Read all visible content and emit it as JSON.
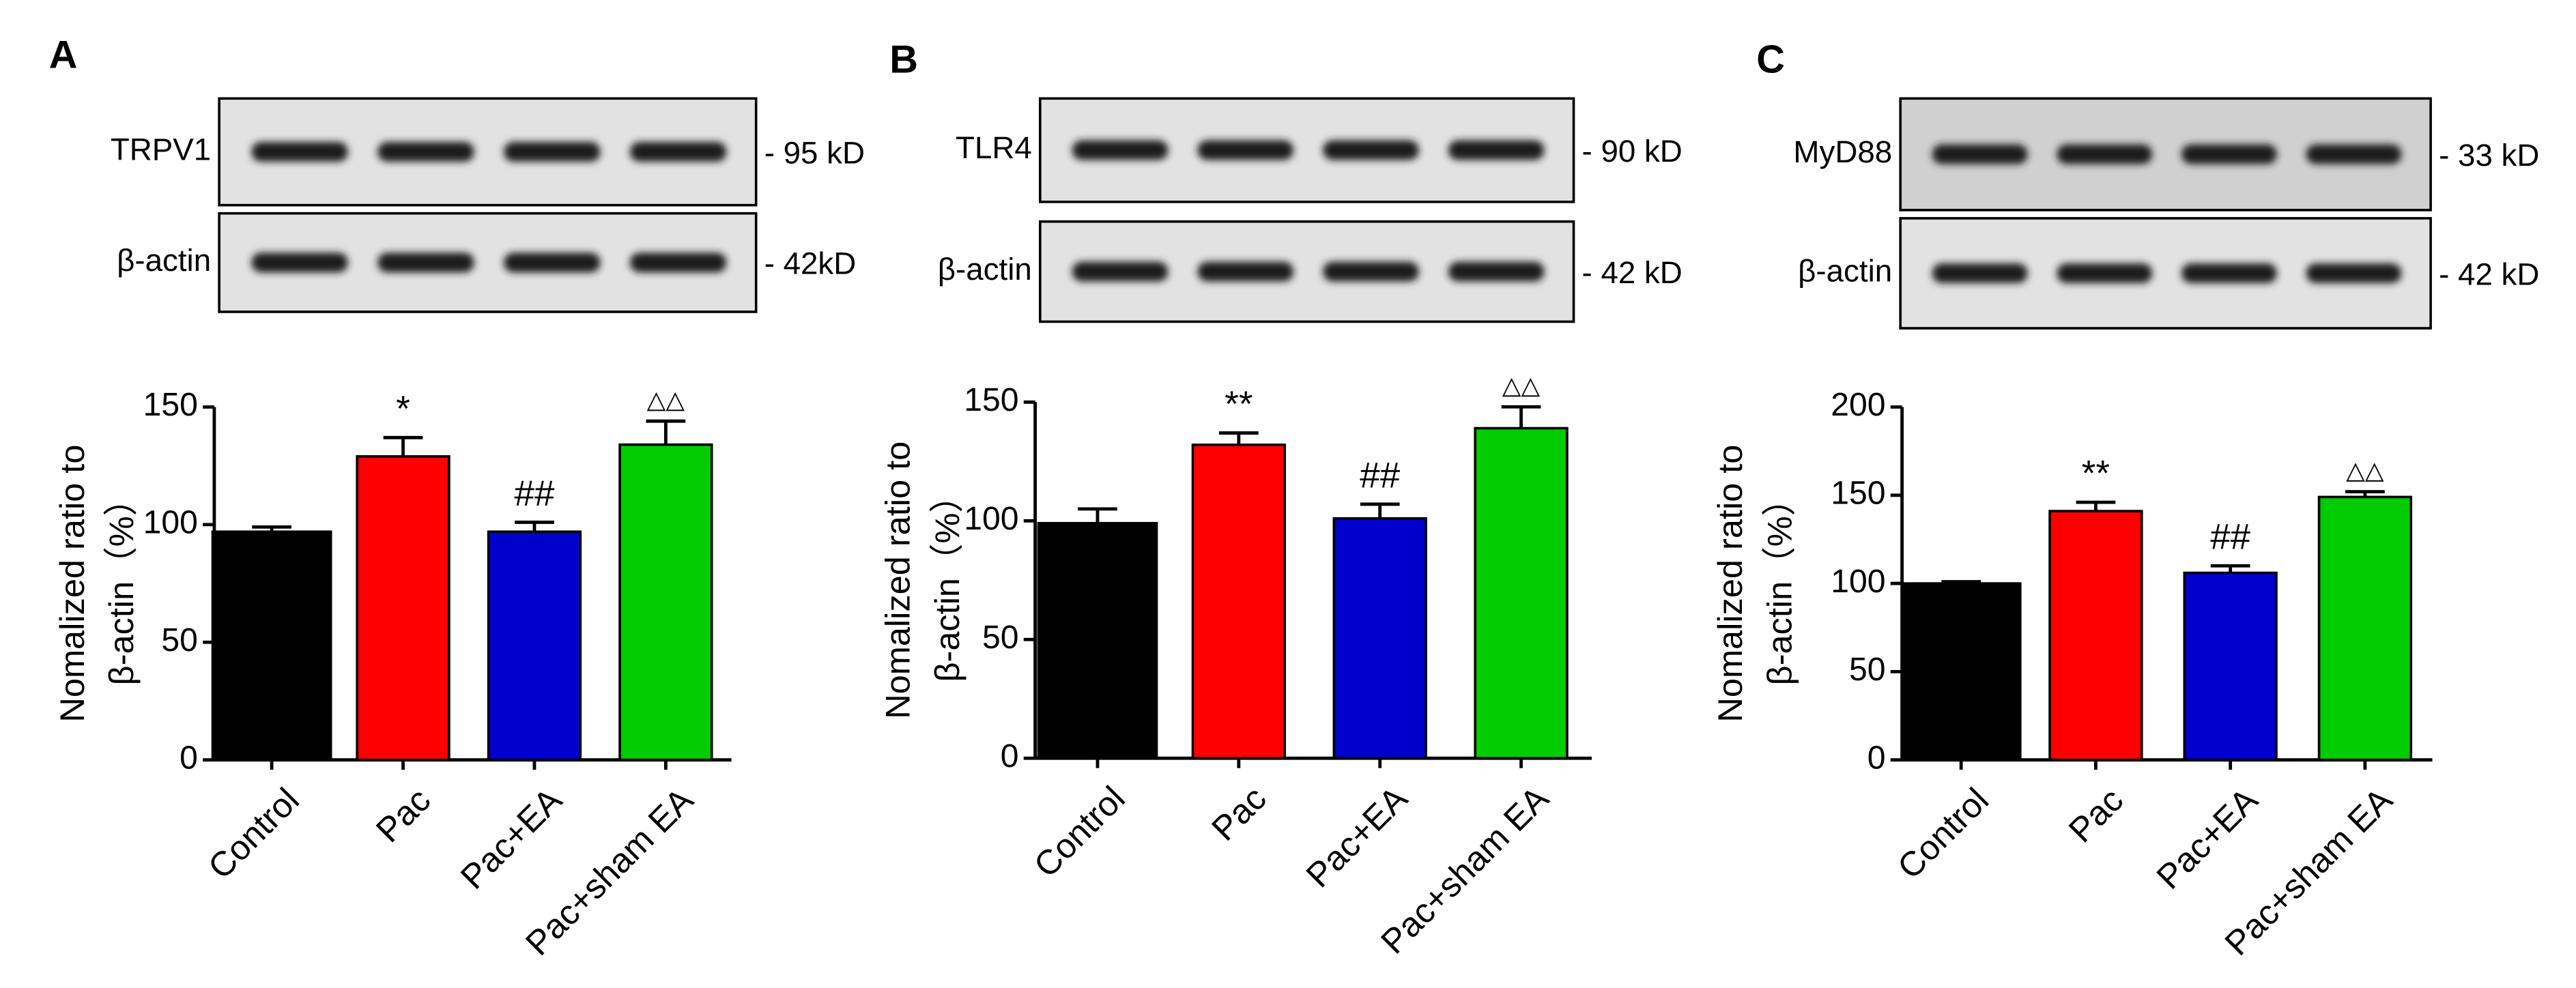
{
  "chart_data": [
    {
      "type": "bar",
      "panel": "A",
      "blots": [
        {
          "label": "TRPV1",
          "marker": "- 95 kD"
        },
        {
          "label": "β-actin",
          "marker": "- 42kD"
        }
      ],
      "ylabel": [
        "Nomalized ratio to",
        "β-actin（%）"
      ],
      "categories": [
        "Control",
        "Pac",
        "Pac+EA",
        "Pac+sham EA"
      ],
      "values": [
        97,
        129,
        97,
        134
      ],
      "errors": [
        2,
        8,
        4,
        10
      ],
      "colors": [
        "#000000",
        "#ff0000",
        "#0000cc",
        "#00cc00"
      ],
      "annotations": [
        null,
        "*",
        "##",
        "△△"
      ],
      "ylim": [
        0,
        150
      ],
      "yticks": [
        0,
        50,
        100,
        150
      ]
    },
    {
      "type": "bar",
      "panel": "B",
      "blots": [
        {
          "label": "TLR4",
          "marker": "- 90 kD"
        },
        {
          "label": "β-actin",
          "marker": "- 42 kD"
        }
      ],
      "ylabel": [
        "Nomalized ratio to",
        "β-actin（%）"
      ],
      "categories": [
        "Control",
        "Pac",
        "Pac+EA",
        "Pac+sham EA"
      ],
      "values": [
        99,
        132,
        101,
        139
      ],
      "errors": [
        6,
        5,
        6,
        9
      ],
      "colors": [
        "#000000",
        "#ff0000",
        "#0000cc",
        "#00cc00"
      ],
      "annotations": [
        null,
        "**",
        "##",
        "△△"
      ],
      "ylim": [
        0,
        150
      ],
      "yticks": [
        0,
        50,
        100,
        150
      ]
    },
    {
      "type": "bar",
      "panel": "C",
      "blots": [
        {
          "label": "MyD88",
          "marker": "- 33 kD"
        },
        {
          "label": "β-actin",
          "marker": "- 42 kD"
        }
      ],
      "ylabel": [
        "Nomalized ratio to",
        "β-actin（%）"
      ],
      "categories": [
        "Control",
        "Pac",
        "Pac+EA",
        "Pac+sham EA"
      ],
      "values": [
        100,
        141,
        106,
        149
      ],
      "errors": [
        1,
        5,
        4,
        3
      ],
      "colors": [
        "#000000",
        "#ff0000",
        "#0000cc",
        "#00cc00"
      ],
      "annotations": [
        null,
        "**",
        "##",
        "△△"
      ],
      "ylim": [
        0,
        200
      ],
      "yticks": [
        0,
        50,
        100,
        150,
        200
      ]
    }
  ]
}
